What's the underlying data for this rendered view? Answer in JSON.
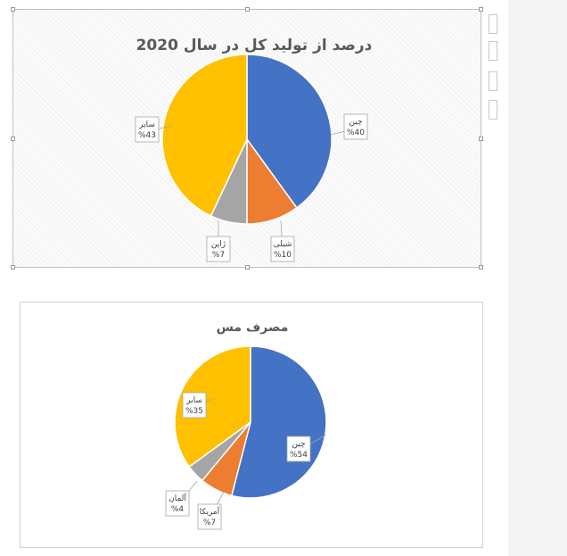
{
  "chart_data": [
    {
      "type": "pie",
      "title": "درصد از تولید کل در سال 2020",
      "slices": [
        {
          "label": "چین",
          "value": 40,
          "value_label": "%40",
          "color": "#4472C4"
        },
        {
          "label": "شیلی",
          "value": 10,
          "value_label": "%10",
          "color": "#ED7D31"
        },
        {
          "label": "ژاپن",
          "value": 7,
          "value_label": "%7",
          "color": "#A5A5A5"
        },
        {
          "label": "سایر",
          "value": 43,
          "value_label": "%43",
          "color": "#FFC000"
        }
      ],
      "start_angle_deg": 0,
      "direction": "clockwise",
      "legend": "none"
    },
    {
      "type": "pie",
      "title": "مصرف مس",
      "slices": [
        {
          "label": "چین",
          "value": 54,
          "value_label": "%54",
          "color": "#4472C4"
        },
        {
          "label": "آمریکا",
          "value": 7,
          "value_label": "%7",
          "color": "#ED7D31"
        },
        {
          "label": "آلمان",
          "value": 4,
          "value_label": "%4",
          "color": "#A5A5A5"
        },
        {
          "label": "سایر",
          "value": 35,
          "value_label": "%35",
          "color": "#FFC000"
        }
      ],
      "start_angle_deg": 0,
      "direction": "clockwise",
      "legend": "none"
    }
  ]
}
